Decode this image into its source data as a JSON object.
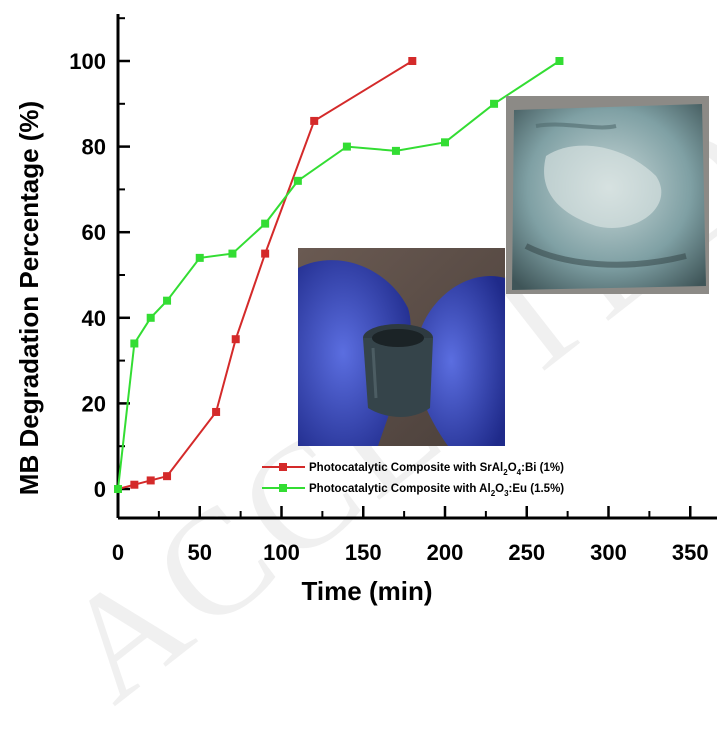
{
  "watermark": "ACCEPTED MANUSCRIPT",
  "colors": {
    "red": "#d42a2a",
    "green": "#33dd33",
    "axis": "#000000"
  },
  "insets": [
    {
      "name": "photo-gloves-holding-tube",
      "description_hidden": true
    },
    {
      "name": "photo-coated-plate",
      "description_hidden": true
    }
  ],
  "chart_data": {
    "type": "line",
    "xlabel": "Time (min)",
    "ylabel": "MB Degradation Percentage (%)",
    "xlim": [
      0,
      360
    ],
    "ylim": [
      0,
      110
    ],
    "xticks": [
      0,
      50,
      100,
      150,
      200,
      250,
      300,
      350
    ],
    "yticks": [
      0,
      20,
      40,
      60,
      80,
      100
    ],
    "grid": false,
    "legend_position": "bottom-center",
    "series": [
      {
        "name": "Photocatalytic Composite with SrAl2O4:Bi (1%)",
        "legend_parts": [
          "Photocatalytic Composite with SrAl",
          "2",
          "O",
          "4",
          ":Bi (1%)"
        ],
        "color": "#d42a2a",
        "x": [
          0,
          10,
          20,
          30,
          60,
          72,
          90,
          120,
          180
        ],
        "y": [
          0,
          1,
          2,
          3,
          18,
          35,
          55,
          86,
          100
        ]
      },
      {
        "name": "Photocatalytic Composite with Al2O3:Eu (1.5%)",
        "legend_parts": [
          "Photocatalytic Composite with Al",
          "2",
          "O",
          "3",
          ":Eu (1.5%)"
        ],
        "color": "#33dd33",
        "x": [
          0,
          10,
          20,
          30,
          50,
          70,
          90,
          110,
          140,
          170,
          200,
          230,
          270
        ],
        "y": [
          0,
          34,
          40,
          44,
          54,
          55,
          62,
          72,
          80,
          79,
          81,
          90,
          100
        ]
      }
    ]
  }
}
